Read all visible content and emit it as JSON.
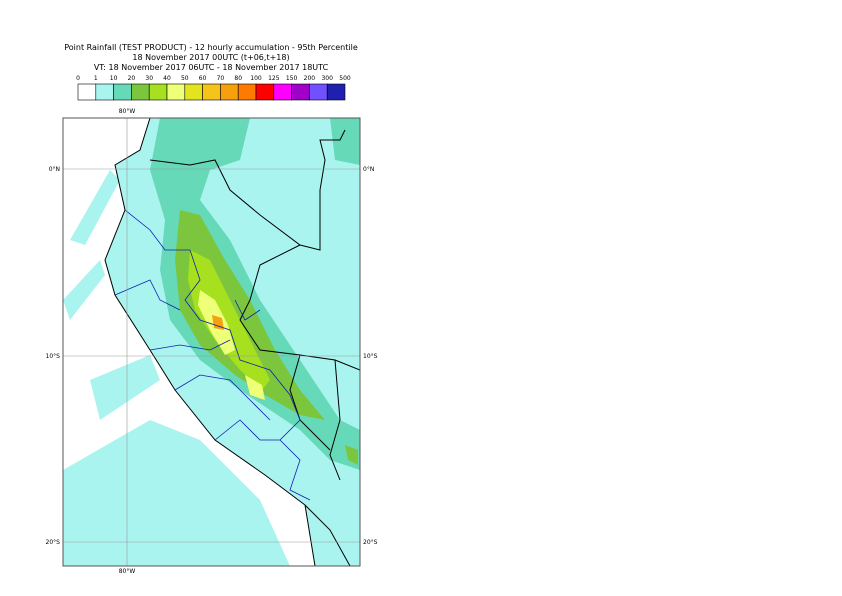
{
  "header": {
    "lines": [
      "Point Rainfall (TEST PRODUCT) - 12 hourly accumulation - 95th Percentile",
      "18 November 2017 00UTC (t+06,t+18)",
      "VT: 18 November 2017 06UTC - 18 November 2017 18UTC"
    ]
  },
  "legend": {
    "labels": [
      "0",
      "1",
      "10",
      "20",
      "30",
      "40",
      "50",
      "60",
      "70",
      "80",
      "100",
      "125",
      "150",
      "200",
      "300",
      "500"
    ],
    "colors": [
      "#ffffff",
      "#aaf4f0",
      "#66d9b8",
      "#7cc63e",
      "#a6e01e",
      "#eeff78",
      "#e4e41e",
      "#f6c418",
      "#f5a00c",
      "#ff7a00",
      "#ff0000",
      "#ff00ff",
      "#a000c8",
      "#7050ff",
      "#2020b0",
      "#101060"
    ]
  },
  "map": {
    "lon_labels_top": [
      "80°W"
    ],
    "lon_labels_bottom": [
      "80°W"
    ],
    "lat_labels_left": [
      "0°N",
      "10°S",
      "20°S"
    ],
    "lat_labels_right": [
      "0°N",
      "10°S",
      "20°S"
    ]
  }
}
